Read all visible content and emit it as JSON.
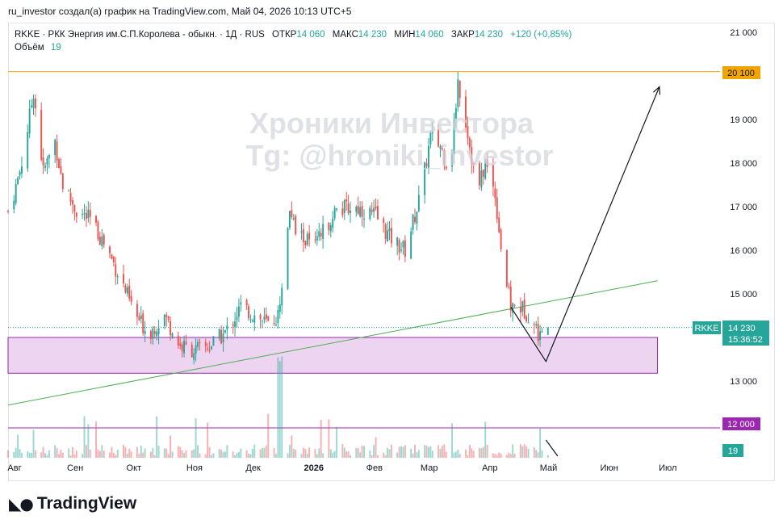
{
  "credit": "ru_investor создал(а) график на TradingView.com, Май 04, 2026 10:13 UTC+5",
  "legend": {
    "symbol": "RKKE · РКК Энергия им.С.П.Королева - обыкн. · 1Д · RUS",
    "open_label": "ОТКР",
    "open": "14 060",
    "high_label": "МАКС",
    "high": "14 230",
    "low_label": "МИН",
    "low": "14 060",
    "close_label": "ЗАКР",
    "close": "14 230",
    "change": "+120 (+0,85%)",
    "volume_label": "Объём",
    "volume": "19"
  },
  "watermark": {
    "line1": "Хроники Инвестора",
    "line2": "Tg: @hroniki_investor"
  },
  "price_tag": {
    "ticker": "RKKE",
    "price": "14 230",
    "timer": "15:36:52"
  },
  "level_tags": {
    "orange": "20 100",
    "purple": "12 000",
    "volume": "19"
  },
  "brand": "TradingView",
  "colors": {
    "up": "#26a69a",
    "down": "#ef5350",
    "orange": "#f0a400",
    "purple": "#9c27b0",
    "trend": "#4caf50",
    "zone_fill": "#e9c9ee"
  },
  "chart_data": {
    "type": "candlestick",
    "timeframe": "1D",
    "y_ticks": [
      "21 000",
      "19 000",
      "18 000",
      "17 000",
      "16 000",
      "15 000",
      "13 000"
    ],
    "y_tick_values": [
      21000,
      19000,
      18000,
      17000,
      16000,
      15000,
      13000
    ],
    "x_ticks": [
      "Авг",
      "Сен",
      "Окт",
      "Ноя",
      "Дек",
      "2026",
      "Фев",
      "Мар",
      "Апр",
      "Май",
      "Июн",
      "Июл"
    ],
    "ylim": [
      11400,
      21400
    ],
    "x_range": [
      "2025-08-01",
      "2026-07-31"
    ],
    "horizontal_lines": [
      {
        "price": 20100,
        "color": "orange"
      },
      {
        "price": 12000,
        "color": "purple"
      }
    ],
    "zone": {
      "from": "2025-08-01",
      "to": "2026-06-29",
      "low": 13180,
      "high": 14000
    },
    "trendline": {
      "from": [
        "2025-08-01",
        12450
      ],
      "to": [
        "2026-06-29",
        15300
      ]
    },
    "projection": [
      [
        "2026-04-15",
        14700
      ],
      [
        "2026-05-03",
        13450
      ],
      [
        "2026-06-30",
        19750
      ]
    ],
    "volume_arrow": [
      [
        "2026-05-03",
        560
      ],
      [
        "2026-05-09",
        15
      ]
    ],
    "anchors": [
      [
        "2025-08-01",
        16900
      ],
      [
        "2025-08-05",
        17450
      ],
      [
        "2025-08-09",
        18200
      ],
      [
        "2025-08-14",
        19650
      ],
      [
        "2025-08-19",
        17800
      ],
      [
        "2025-08-25",
        18500
      ],
      [
        "2025-08-29",
        17500
      ],
      [
        "2025-09-05",
        16900
      ],
      [
        "2025-09-12",
        16700
      ],
      [
        "2025-09-20",
        16100
      ],
      [
        "2025-09-28",
        15300
      ],
      [
        "2025-10-05",
        14500
      ],
      [
        "2025-10-12",
        14100
      ],
      [
        "2025-10-20",
        14500
      ],
      [
        "2025-10-28",
        13800
      ],
      [
        "2025-11-05",
        13700
      ],
      [
        "2025-11-12",
        13800
      ],
      [
        "2025-11-20",
        14100
      ],
      [
        "2025-11-28",
        14700
      ],
      [
        "2025-12-05",
        14500
      ],
      [
        "2025-12-12",
        14300
      ],
      [
        "2025-12-17",
        14500
      ],
      [
        "2025-12-20",
        15700
      ],
      [
        "2025-12-23",
        17000
      ],
      [
        "2025-12-26",
        16400
      ],
      [
        "2026-01-05",
        16100
      ],
      [
        "2026-01-15",
        16900
      ],
      [
        "2026-01-25",
        17000
      ],
      [
        "2026-02-05",
        16800
      ],
      [
        "2026-02-12",
        16300
      ],
      [
        "2026-02-20",
        16000
      ],
      [
        "2026-02-28",
        17300
      ],
      [
        "2026-03-05",
        18600
      ],
      [
        "2026-03-10",
        18400
      ],
      [
        "2026-03-15",
        17800
      ],
      [
        "2026-03-19",
        19900
      ],
      [
        "2026-03-24",
        18700
      ],
      [
        "2026-03-29",
        17300
      ],
      [
        "2026-04-02",
        18000
      ],
      [
        "2026-04-07",
        17300
      ],
      [
        "2026-04-11",
        15700
      ],
      [
        "2026-04-15",
        14700
      ],
      [
        "2026-04-20",
        14700
      ],
      [
        "2026-04-25",
        14500
      ],
      [
        "2026-04-30",
        14000
      ],
      [
        "2026-05-04",
        14230
      ]
    ]
  }
}
